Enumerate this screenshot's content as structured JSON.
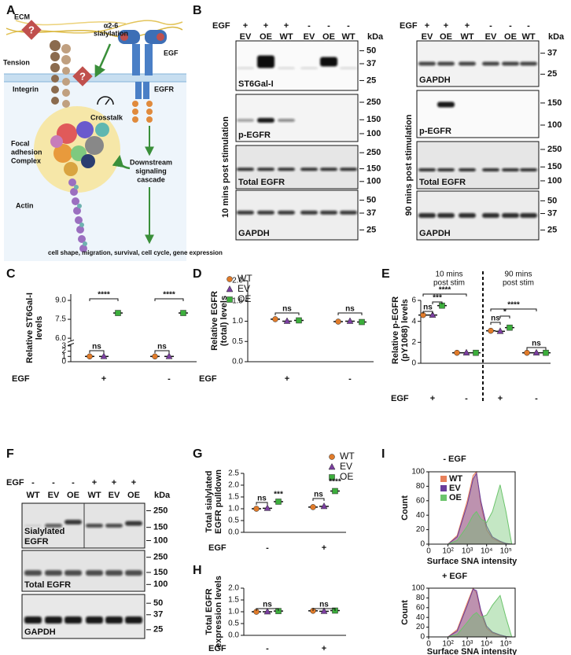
{
  "illustration": {
    "panel": "A",
    "question": "?",
    "ecm": "ECM",
    "tension": "Tension",
    "sialylation": [
      "α2-6",
      "sialylation"
    ],
    "egf": "EGF",
    "integrin": "Integrin",
    "egfr": "EGFR",
    "crosstalk": "Crosstalk",
    "focal": [
      "Focal",
      "adhesion",
      "Complex"
    ],
    "downstream": [
      "Downstream",
      "signaling",
      "cascade"
    ],
    "actin": "Actin",
    "outcome": "cell shape, migration, survival, cell cycle, gene expression"
  },
  "blots": [
    {
      "panel": "B",
      "sets": [
        {
          "treatment": "EGF",
          "signs": [
            "+",
            "+",
            "+",
            "-",
            "-",
            "-"
          ],
          "lanes": [
            "EV",
            "OE",
            "WT",
            "EV",
            "OE",
            "WT"
          ],
          "unit": "kDa",
          "side_label": "10 mins post stimulation",
          "rows": [
            {
              "name": [
                "ST6Gal-I"
              ],
              "markers": [
                50,
                37,
                25
              ]
            },
            {
              "name": [
                "p-EGFR"
              ],
              "markers": [
                250,
                150,
                100
              ]
            },
            {
              "name": [
                "Total EGFR"
              ],
              "markers": [
                250,
                150,
                100
              ]
            },
            {
              "name": [
                "GAPDH"
              ],
              "markers": [
                50,
                37,
                25
              ]
            }
          ]
        },
        {
          "treatment": "EGF",
          "signs": [
            "+",
            "+",
            "+",
            "-",
            "-",
            "-"
          ],
          "lanes": [
            "EV",
            "OE",
            "WT",
            "EV",
            "OE",
            "WT"
          ],
          "unit": "kDa",
          "side_label": "90 mins post stimulation",
          "rows": [
            {
              "name": [
                "GAPDH"
              ],
              "markers": [
                37,
                25
              ]
            },
            {
              "name": [
                "p-EGFR"
              ],
              "markers": [
                150,
                100
              ]
            },
            {
              "name": [
                "Total EGFR"
              ],
              "markers": [
                250,
                150,
                100
              ]
            },
            {
              "name": [
                "GAPDH"
              ],
              "markers": [
                50,
                37,
                25
              ]
            }
          ]
        }
      ]
    },
    {
      "panel": "F",
      "sets": [
        {
          "treatment": "EGF",
          "signs": [
            "-",
            "-",
            "-",
            "+",
            "+",
            "+"
          ],
          "lanes": [
            "WT",
            "EV",
            "OE",
            "WT",
            "EV",
            "OE"
          ],
          "unit": "kDa",
          "rows": [
            {
              "name": [
                "Sialylated",
                "EGFR"
              ],
              "markers": [
                250,
                150,
                100
              ]
            },
            {
              "name": [
                "Total EGFR"
              ],
              "markers": [
                250,
                150,
                100
              ]
            },
            {
              "name": [
                "GAPDH"
              ],
              "markers": [
                50,
                37,
                25
              ]
            }
          ]
        }
      ]
    }
  ],
  "chart_data": [
    {
      "type": "dot",
      "panel": "C",
      "ylabel": [
        "Relative ST6Gal-I",
        "levels"
      ],
      "x_label": "EGF",
      "categories": [
        "+",
        "-"
      ],
      "series": [
        {
          "name": "WT",
          "color": "#e07b2a",
          "marker": "circle",
          "values": [
            1,
            1
          ]
        },
        {
          "name": "EV",
          "color": "#7b3fa0",
          "marker": "triangle",
          "values": [
            1,
            1
          ]
        },
        {
          "name": "OE",
          "color": "#3cae3c",
          "marker": "square",
          "values": [
            8,
            8
          ]
        }
      ],
      "ylim": [
        0,
        9.5
      ],
      "axis_break": [
        3.2,
        5.8
      ],
      "yticks": [
        0,
        1,
        2,
        3,
        {
          "value": 6,
          "label": "6.0"
        },
        7.5,
        {
          "value": 9,
          "label": "9.0"
        }
      ],
      "annotations": [
        "ns",
        "****",
        "ns",
        "****"
      ],
      "legend": true
    },
    {
      "type": "dot",
      "panel": "D",
      "ylabel": [
        "Relative EGFR",
        "(total) levels"
      ],
      "x_label": "EGF",
      "categories": [
        "+",
        "-"
      ],
      "series": [
        {
          "color": "#e07b2a",
          "marker": "circle",
          "values": [
            1.05,
            0.99
          ]
        },
        {
          "color": "#7b3fa0",
          "marker": "triangle",
          "values": [
            1.0,
            1.0
          ]
        },
        {
          "color": "#3cae3c",
          "marker": "square",
          "values": [
            1.02,
            0.98
          ]
        }
      ],
      "ylim": [
        0,
        2
      ],
      "yticks": [
        {
          "value": 0,
          "label": "0.0"
        },
        0.5,
        {
          "value": 1,
          "label": "1.0"
        },
        1.5,
        {
          "value": 2,
          "label": "2.0"
        }
      ],
      "annotations": [
        "ns",
        "ns"
      ],
      "legend": false
    },
    {
      "type": "dot",
      "panel": "E",
      "ylabel": [
        "Relative p-EGFR",
        "(pY1068) levels"
      ],
      "x_label": "EGF",
      "categories": [
        "+",
        "-",
        "+",
        "-"
      ],
      "groups": [
        [
          "10 mins",
          "post stim"
        ],
        [
          "90 mins",
          "post stim"
        ]
      ],
      "series": [
        {
          "color": "#e07b2a",
          "marker": "circle",
          "values": [
            4.6,
            1,
            3.1,
            1
          ]
        },
        {
          "color": "#7b3fa0",
          "marker": "triangle",
          "values": [
            4.6,
            1,
            3.05,
            1
          ]
        },
        {
          "color": "#3cae3c",
          "marker": "square",
          "values": [
            5.5,
            1,
            3.4,
            1
          ]
        }
      ],
      "ylim": [
        0,
        6
      ],
      "yticks": [
        0,
        2,
        4,
        6
      ],
      "annotations": [
        "ns",
        "***",
        "****",
        "ns",
        "*",
        "****",
        "ns"
      ],
      "legend": false
    },
    {
      "type": "dot",
      "panel": "G",
      "ylabel": [
        "Total sialylated",
        "EGFR pulldown"
      ],
      "x_label": "EGF",
      "categories": [
        "-",
        "+"
      ],
      "series": [
        {
          "name": "WT",
          "color": "#e07b2a",
          "marker": "circle",
          "values": [
            1.0,
            1.07
          ]
        },
        {
          "name": "EV",
          "color": "#7b3fa0",
          "marker": "triangle",
          "values": [
            1.02,
            1.1
          ]
        },
        {
          "name": "OE",
          "color": "#3cae3c",
          "marker": "square",
          "values": [
            1.3,
            1.75
          ]
        }
      ],
      "ylim": [
        0,
        2.5
      ],
      "yticks": [
        {
          "value": 0,
          "label": "0.0"
        },
        0.5,
        {
          "value": 1,
          "label": "1.0"
        },
        1.5,
        {
          "value": 2,
          "label": "2.0"
        },
        2.5
      ],
      "annotations": [
        "ns",
        "***",
        "ns",
        "****"
      ],
      "legend": true
    },
    {
      "type": "dot",
      "panel": "H",
      "ylabel": [
        "Total EGFR",
        "expression levels"
      ],
      "x_label": "EGF",
      "categories": [
        "-",
        "+"
      ],
      "series": [
        {
          "color": "#e07b2a",
          "marker": "circle",
          "values": [
            1.0,
            1.04
          ]
        },
        {
          "color": "#7b3fa0",
          "marker": "triangle",
          "values": [
            1.0,
            1.02
          ]
        },
        {
          "color": "#3cae3c",
          "marker": "square",
          "values": [
            1.03,
            1.05
          ]
        }
      ],
      "ylim": [
        0,
        2
      ],
      "yticks": [
        {
          "value": 0,
          "label": "0.0"
        },
        0.5,
        {
          "value": 1,
          "label": "1.0"
        },
        1.5,
        {
          "value": 2,
          "label": "2.0"
        }
      ],
      "annotations": [
        "ns",
        "ns"
      ],
      "legend": false
    },
    {
      "type": "area",
      "panel": "I",
      "title": "- EGF",
      "ylabel": "Count",
      "xlabel": "Surface SNA intensity",
      "xscale": "symlog",
      "x": [
        100,
        300,
        1000,
        2000,
        3000,
        5000,
        10000,
        20000,
        50000,
        100000,
        200000
      ],
      "series": [
        {
          "name": "WT",
          "color": "#e8805a",
          "values": [
            0,
            12,
            60,
            95,
            100,
            55,
            20,
            8,
            3,
            1,
            0
          ]
        },
        {
          "name": "EV",
          "color": "#6a3d9a",
          "values": [
            0,
            10,
            55,
            90,
            98,
            60,
            25,
            10,
            4,
            1,
            0
          ]
        },
        {
          "name": "OE",
          "color": "#6cc46c",
          "values": [
            0,
            5,
            25,
            40,
            45,
            35,
            30,
            45,
            82,
            45,
            0
          ]
        }
      ],
      "xlim": [
        0,
        300000
      ],
      "ylim": [
        0,
        100
      ],
      "yticks": [
        0,
        20,
        40,
        60,
        80,
        100
      ],
      "xticks": [
        0,
        {
          "value": 100,
          "label": "10²"
        },
        {
          "value": 1000,
          "label": "10³"
        },
        {
          "value": 10000,
          "label": "10⁴"
        },
        {
          "value": 100000,
          "label": "10⁵"
        }
      ],
      "legend": true
    },
    {
      "type": "area",
      "title": "+ EGF",
      "ylabel": "Count",
      "xlabel": "Surface SNA intensity",
      "xscale": "symlog",
      "x": [
        100,
        300,
        1000,
        2000,
        3000,
        5000,
        10000,
        20000,
        50000,
        100000,
        200000
      ],
      "series": [
        {
          "color": "#e8805a",
          "values": [
            0,
            15,
            70,
            100,
            90,
            50,
            18,
            8,
            3,
            1,
            0
          ]
        },
        {
          "color": "#6a3d9a",
          "values": [
            0,
            12,
            65,
            98,
            95,
            55,
            22,
            10,
            4,
            1,
            0
          ]
        },
        {
          "color": "#6cc46c",
          "values": [
            0,
            5,
            30,
            45,
            50,
            40,
            45,
            65,
            85,
            40,
            0
          ]
        }
      ],
      "xlim": [
        0,
        300000
      ],
      "ylim": [
        0,
        100
      ],
      "yticks": [
        0,
        20,
        40,
        60,
        80,
        100
      ],
      "xticks": [
        0,
        {
          "value": 100,
          "label": "10²"
        },
        {
          "value": 1000,
          "label": "10³"
        },
        {
          "value": 10000,
          "label": "10⁴"
        },
        {
          "value": 100000,
          "label": "10⁵"
        }
      ],
      "legend": false
    }
  ]
}
